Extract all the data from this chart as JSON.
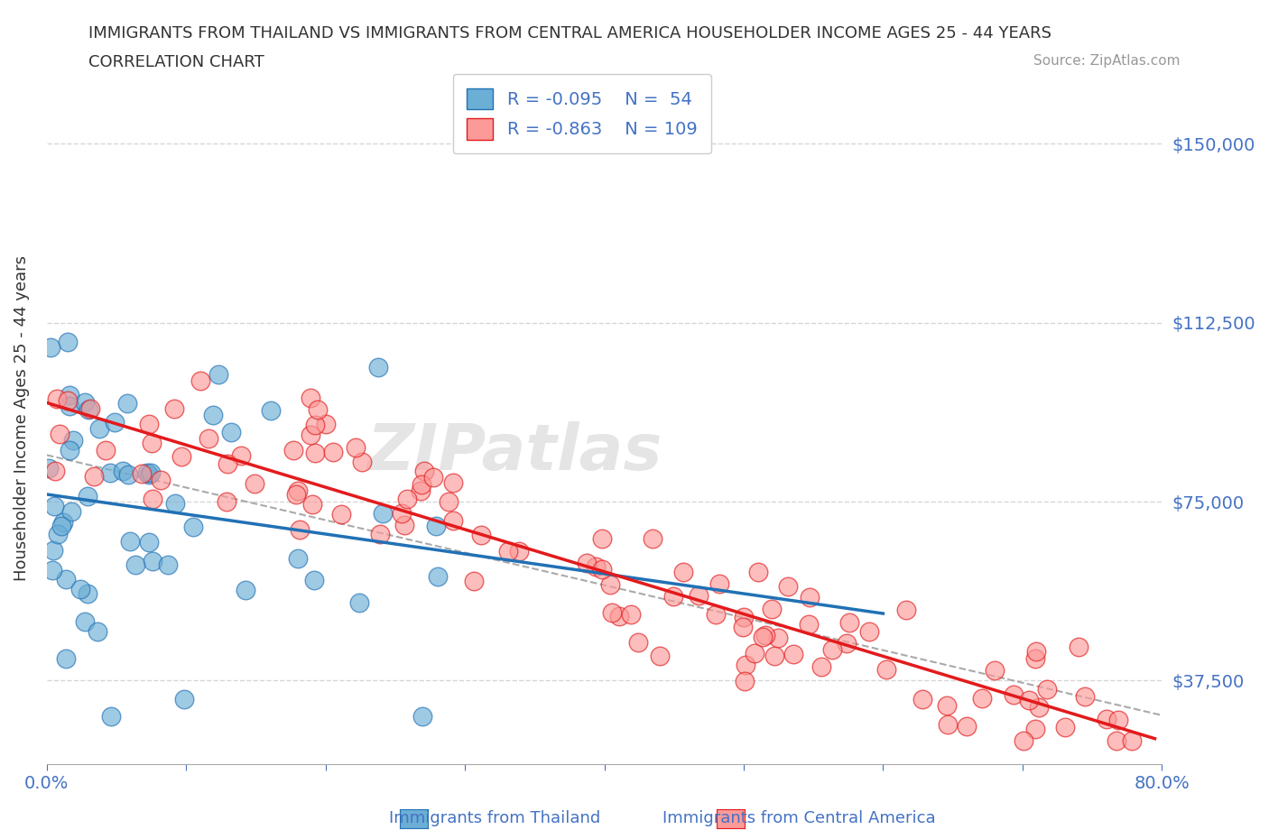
{
  "title_line1": "IMMIGRANTS FROM THAILAND VS IMMIGRANTS FROM CENTRAL AMERICA HOUSEHOLDER INCOME AGES 25 - 44 YEARS",
  "title_line2": "CORRELATION CHART",
  "source_text": "Source: ZipAtlas.com",
  "ylabel": "Householder Income Ages 25 - 44 years",
  "watermark": "ZIPatlas",
  "thailand_R": -0.095,
  "thailand_N": 54,
  "central_america_R": -0.863,
  "central_america_N": 109,
  "legend_label1": "Immigrants from Thailand",
  "legend_label2": "Immigrants from Central America",
  "xlim": [
    0.0,
    0.8
  ],
  "ylim": [
    20000,
    165000
  ],
  "yticks": [
    37500,
    75000,
    112500,
    150000
  ],
  "ytick_labels": [
    "$37,500",
    "$75,000",
    "$112,500",
    "$150,000"
  ],
  "xtick_positions": [
    0.0,
    0.1,
    0.2,
    0.3,
    0.4,
    0.5,
    0.6,
    0.7,
    0.8
  ],
  "xtick_labels": [
    "0.0%",
    "",
    "",
    "",
    "",
    "",
    "",
    "",
    "80.0%"
  ],
  "color_thailand": "#6baed6",
  "color_central_america": "#fb9a99",
  "color_trendline_thailand": "#2171b5",
  "color_trendline_central_america": "#e31a1c",
  "color_axis_labels": "#4472c4",
  "background_color": "#ffffff",
  "grid_color": "#cccccc"
}
